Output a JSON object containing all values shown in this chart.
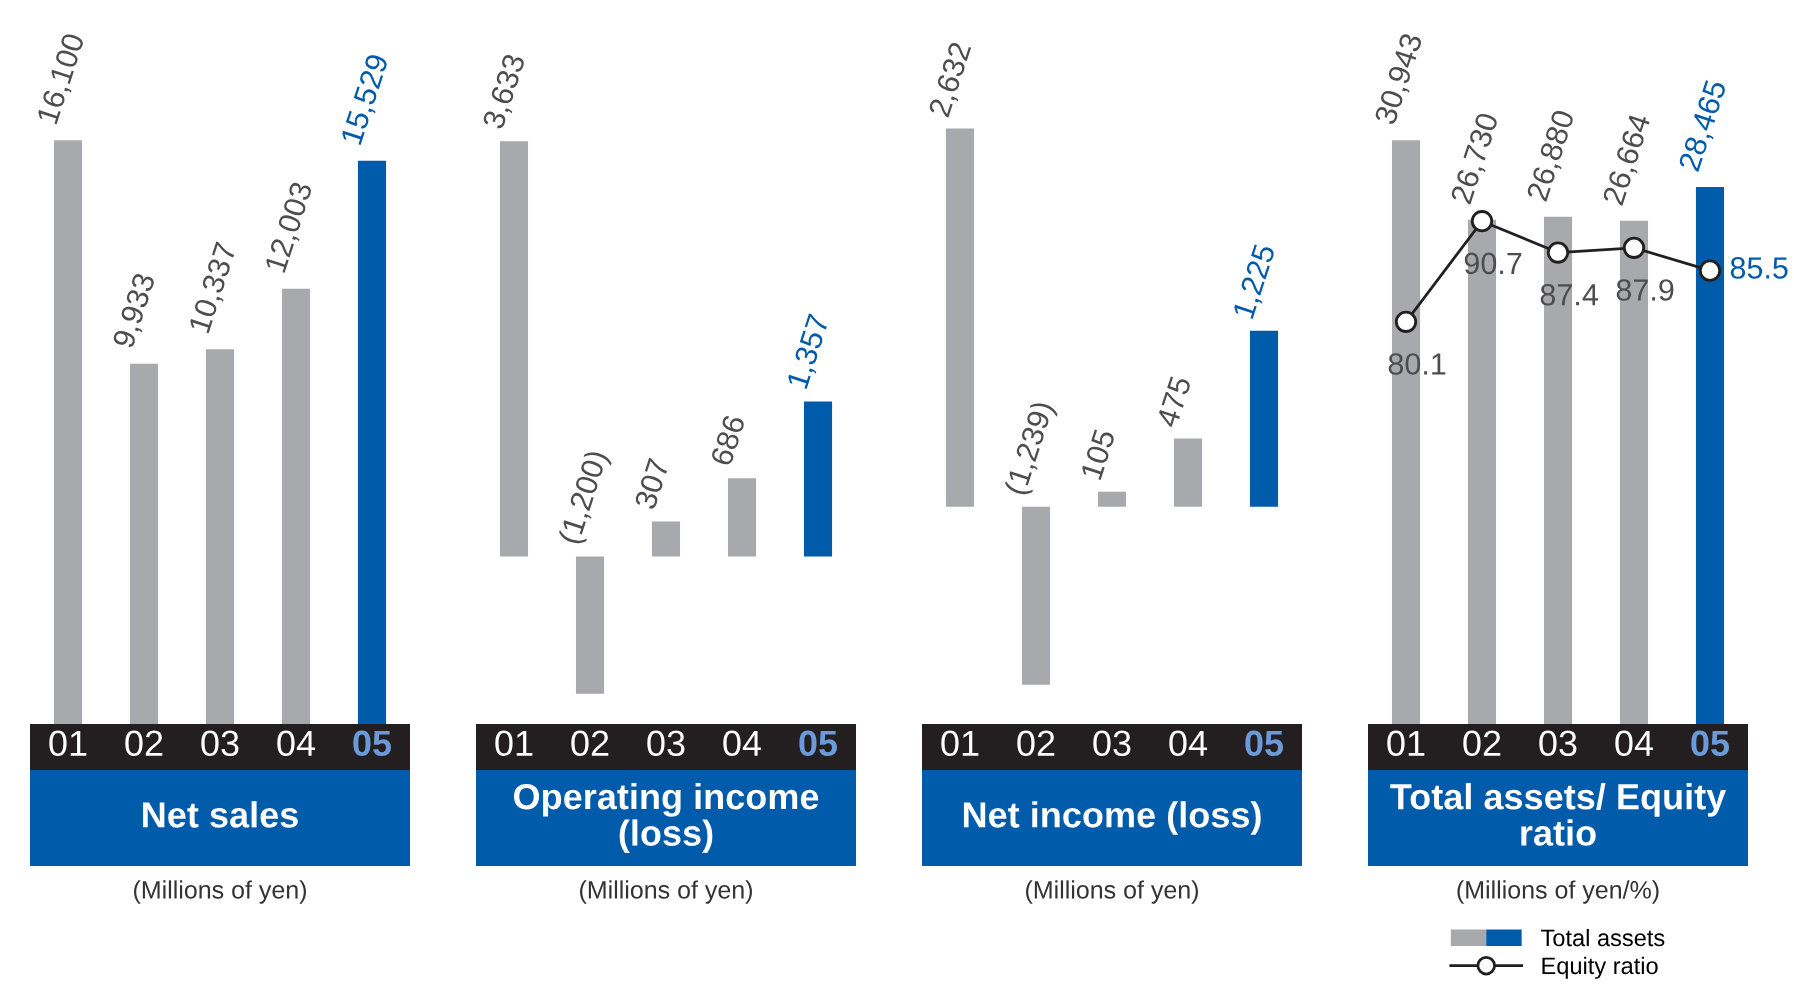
{
  "chart_data": [
    {
      "type": "bar",
      "title": "Net sales",
      "subtitle": "(Millions of yen)",
      "categories": [
        "01",
        "02",
        "03",
        "04",
        "05"
      ],
      "values": [
        16100,
        9933,
        10337,
        12003,
        15529
      ],
      "colors": [
        "#a7a9ac",
        "#a7a9ac",
        "#a7a9ac",
        "#a7a9ac",
        "#005bab"
      ],
      "value_labels": [
        "16,100",
        "9,933",
        "10,337",
        "12,003",
        "15,529"
      ]
    },
    {
      "type": "bar",
      "title": "Operating income (loss)",
      "subtitle": "(Millions of yen)",
      "categories": [
        "01",
        "02",
        "03",
        "04",
        "05"
      ],
      "values": [
        3633,
        -1200,
        307,
        686,
        1357
      ],
      "colors": [
        "#a7a9ac",
        "#a7a9ac",
        "#a7a9ac",
        "#a7a9ac",
        "#005bab"
      ],
      "value_labels": [
        "3,633",
        "(1,200)",
        "307",
        "686",
        "1,357"
      ]
    },
    {
      "type": "bar",
      "title": "Net income (loss)",
      "subtitle": "(Millions of yen)",
      "categories": [
        "01",
        "02",
        "03",
        "04",
        "05"
      ],
      "values": [
        2632,
        -1239,
        105,
        475,
        1225
      ],
      "colors": [
        "#a7a9ac",
        "#a7a9ac",
        "#a7a9ac",
        "#a7a9ac",
        "#005bab"
      ],
      "value_labels": [
        "2,632",
        "(1,239)",
        "105",
        "475",
        "1,225"
      ]
    },
    {
      "type": "bar",
      "title": "Total assets/ Equity ratio",
      "subtitle": "(Millions of yen/%)",
      "categories": [
        "01",
        "02",
        "03",
        "04",
        "05"
      ],
      "legend": "bottom",
      "series": [
        {
          "name": "Total assets",
          "type": "bar",
          "colors": [
            "#a7a9ac",
            "#a7a9ac",
            "#a7a9ac",
            "#a7a9ac",
            "#005bab"
          ],
          "values": [
            30943,
            26730,
            26880,
            26664,
            28465
          ],
          "value_labels": [
            "30,943",
            "26,730",
            "26,880",
            "26,664",
            "28,465"
          ]
        },
        {
          "name": "Equity ratio",
          "type": "line",
          "axis": "y2",
          "color": "#231f20",
          "marker": "circle",
          "values": [
            80.1,
            90.7,
            87.4,
            87.9,
            85.5
          ],
          "value_labels": [
            "80.1",
            "90.7",
            "87.4",
            "87.9",
            "85.5"
          ]
        }
      ]
    }
  ]
}
